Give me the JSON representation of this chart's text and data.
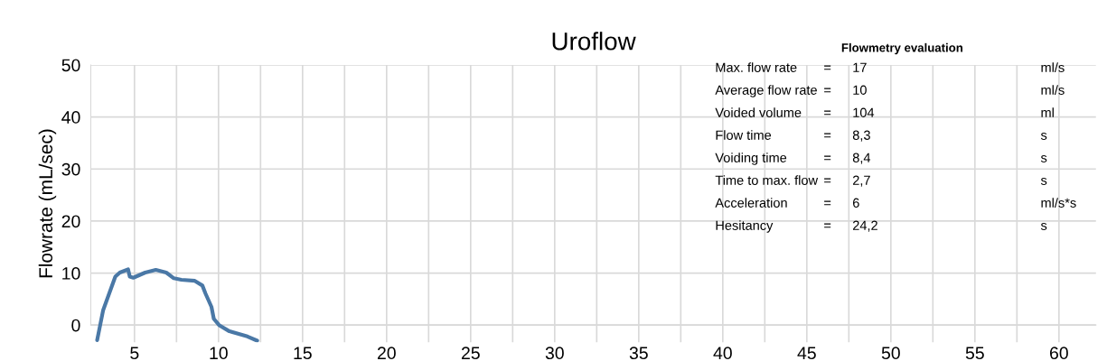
{
  "chart_data": {
    "type": "line",
    "title": "Uroflow",
    "ylabel": "Flowrate (mL/sec)",
    "x": [
      2.78,
      3.14,
      3.86,
      4.13,
      4.62,
      4.72,
      4.93,
      5.64,
      6.27,
      6.89,
      7.34,
      7.79,
      8.59,
      9.04,
      9.22,
      9.58,
      9.72,
      10.03,
      10.65,
      11.72,
      12.3
    ],
    "series": [
      {
        "color": "#4a78a6",
        "values": [
          -2.9,
          2.9,
          9.3,
          10.1,
          10.7,
          9.3,
          9.1,
          10.1,
          10.6,
          10.1,
          9.0,
          8.7,
          8.5,
          7.6,
          6.1,
          3.5,
          1.2,
          0,
          -1.2,
          -2.2,
          -3.0
        ]
      }
    ],
    "xlim": [
      2.4,
      62.2
    ],
    "ylim": [
      -3.3,
      50
    ],
    "xticks": [
      5,
      {
        "value": 7.5,
        "label": null
      },
      10,
      {
        "value": 12.5,
        "label": null
      },
      15,
      {
        "value": 17.5,
        "label": null
      },
      20,
      {
        "value": 22.5,
        "label": null
      },
      25,
      {
        "value": 27.5,
        "label": null
      },
      30,
      {
        "value": 32.5,
        "label": null
      },
      35,
      {
        "value": 37.5,
        "label": null
      },
      40,
      {
        "value": 42.5,
        "label": null
      },
      45,
      {
        "value": 47.5,
        "label": null
      },
      50,
      {
        "value": 52.5,
        "label": null
      },
      55,
      {
        "value": 57.5,
        "label": null
      },
      60
    ],
    "yticks": [
      0,
      10,
      20,
      30,
      40,
      50
    ],
    "grid": true,
    "marker": "none",
    "line_style": "solid",
    "annotations": [
      "Flowmetry evaluation",
      "Max. flow rate",
      "=",
      "17",
      "ml/s",
      "Average flow rate",
      "=",
      "10",
      "ml/s",
      "Voided volume",
      "=",
      "104",
      "ml",
      "Flow time",
      "=",
      "8,3",
      "s",
      "Voiding time",
      "=",
      "8,4",
      "s",
      "Time to max. flow",
      "=",
      "2,7",
      "s",
      "Acceleration",
      "=",
      "6",
      "ml/s*s",
      "Hesitancy",
      "=",
      "24,2",
      "s"
    ]
  }
}
